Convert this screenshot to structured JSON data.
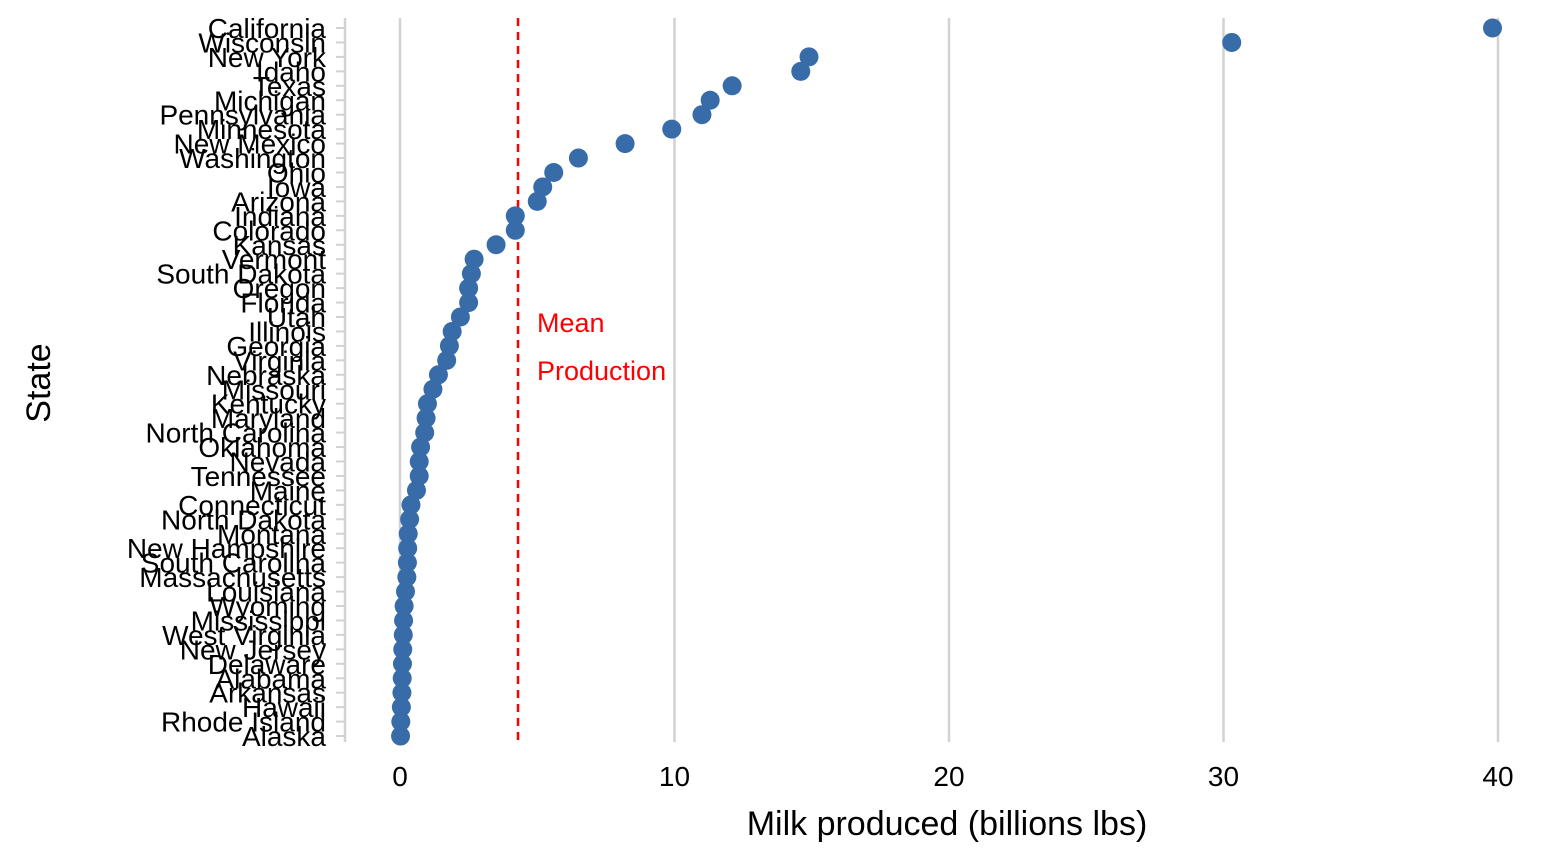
{
  "chart_data": {
    "type": "scatter",
    "xlabel": "Milk produced (billions lbs)",
    "ylabel": "State",
    "xlim": [
      -2,
      40.5
    ],
    "xticks": [
      0,
      10,
      20,
      30,
      40
    ],
    "grid": "vertical major gridlines",
    "mean_line": {
      "value": 4.3,
      "color": "#ff0000",
      "style": "dashed"
    },
    "annotation": [
      "Mean",
      "Production"
    ],
    "point_color": "#376ca8",
    "states": [
      "California",
      "Wisconsin",
      "New York",
      "Idaho",
      "Texas",
      "Michigan",
      "Pennsylvania",
      "Minnesota",
      "New Mexico",
      "Washington",
      "Ohio",
      "Iowa",
      "Arizona",
      "Indiana",
      "Colorado",
      "Kansas",
      "Vermont",
      "South Dakota",
      "Oregon",
      "Florida",
      "Utah",
      "Illinois",
      "Georgia",
      "Virginia",
      "Nebraska",
      "Missouri",
      "Kentucky",
      "Maryland",
      "North Carolina",
      "Oklahoma",
      "Nevada",
      "Tennessee",
      "Maine",
      "Connecticut",
      "North Dakota",
      "Montana",
      "New Hampshire",
      "South Carolina",
      "Massachusetts",
      "Louisiana",
      "Wyoming",
      "Mississippi",
      "West Virginia",
      "New Jersey",
      "Delaware",
      "Alabama",
      "Arkansas",
      "Hawaii",
      "Rhode Island",
      "Alaska"
    ],
    "values": [
      39.8,
      30.3,
      14.9,
      14.6,
      12.1,
      11.3,
      11.0,
      9.9,
      8.2,
      6.5,
      5.6,
      5.2,
      5.0,
      4.2,
      4.2,
      3.5,
      2.7,
      2.6,
      2.5,
      2.5,
      2.2,
      1.9,
      1.8,
      1.7,
      1.4,
      1.2,
      1.0,
      0.95,
      0.9,
      0.75,
      0.7,
      0.7,
      0.6,
      0.4,
      0.35,
      0.3,
      0.28,
      0.27,
      0.25,
      0.2,
      0.15,
      0.13,
      0.12,
      0.1,
      0.09,
      0.08,
      0.07,
      0.05,
      0.03,
      0.02
    ]
  }
}
